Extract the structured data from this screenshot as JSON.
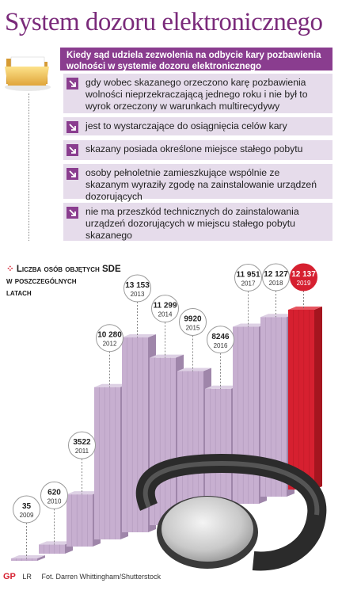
{
  "title": "System dozoru elektronicznego",
  "conditions_header": "Kiedy sąd udziela zezwolenia na odbycie kary pozbawienia wolności w systemie dozoru elektronicznego",
  "conditions": [
    "gdy wobec skazanego orzeczono karę pozbawienia wolności nieprzekraczającą jednego roku i nie był to wyrok orzeczony w warunkach multirecydywy",
    "jest to wystarczające do osiągnięcia celów kary",
    "skazany posiada określone miejsce stałego pobytu",
    "osoby pełnoletnie zamieszkujące wspólnie ze skazanym wyraziły zgodę na zainstalowanie urządzeń dozorujących",
    "nie ma przeszkód technicznych do zainstalowania urządzeń dozorujących w miejscu stałego pobytu skazanego"
  ],
  "chart_data": {
    "type": "bar",
    "title": "Liczba osób objętych SDE w poszczególnych latach",
    "title_line1": "Liczba osób objętych SDE",
    "title_line2": "w poszczególnych",
    "title_line3": "latach",
    "categories": [
      "2009",
      "2010",
      "2011",
      "2012",
      "2013",
      "2014",
      "2015",
      "2016",
      "2017",
      "2018",
      "2019"
    ],
    "value_labels": [
      "35",
      "620",
      "3522",
      "10 280",
      "13 153",
      "11 299",
      "9920",
      "8246",
      "11 951",
      "12 127",
      "12 137"
    ],
    "values": [
      35,
      620,
      3522,
      10280,
      13153,
      11299,
      9920,
      8246,
      11951,
      12127,
      12137
    ],
    "highlight": "2019",
    "colors": {
      "bar": "#c7afd0",
      "bar_side": "#9f86aa",
      "bar_top": "#ddd0e4",
      "highlight": "#d62030",
      "highlight_side": "#a5151f",
      "highlight_top": "#e65560"
    }
  },
  "footer": {
    "logo": "GP",
    "credit": "LR",
    "photo": "Fot. Darren Whittingham/Shutterstock"
  },
  "colors": {
    "accent": "#8a3d8f",
    "title": "#7a2a7a",
    "condition_bg": "#e6dceb"
  }
}
